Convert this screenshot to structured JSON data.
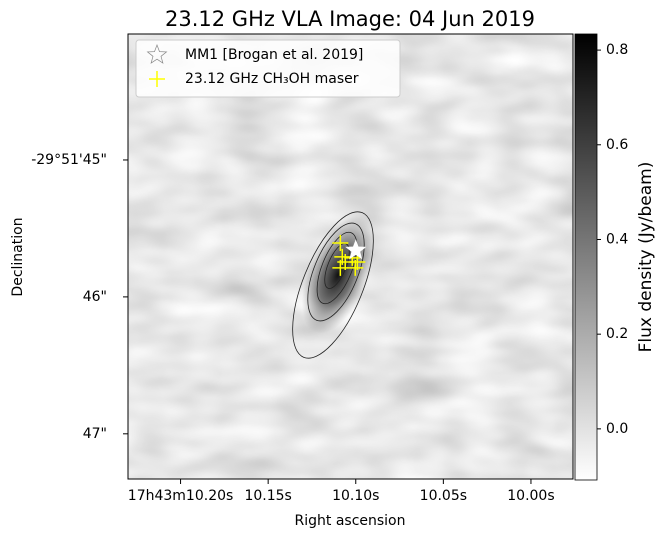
{
  "chart_data": {
    "type": "image",
    "title": "23.12 GHz VLA Image: 04 Jun 2019",
    "xlabel": "Right ascension",
    "ylabel": "Declination",
    "colorbar_label": "Flux density (Jy/beam)",
    "xlim": [
      10.23,
      9.976
    ],
    "xticks": [
      {
        "value": 10.2,
        "label": "17h43m10.20s"
      },
      {
        "value": 10.15,
        "label": "10.15s"
      },
      {
        "value": 10.1,
        "label": "10.10s"
      },
      {
        "value": 10.05,
        "label": "10.05s"
      },
      {
        "value": 10.0,
        "label": "10.00s"
      }
    ],
    "ylim": [
      47.33,
      44.08
    ],
    "yticks": [
      {
        "value": 45,
        "label": "-29°51'45\""
      },
      {
        "value": 46,
        "label": "46\""
      },
      {
        "value": 47,
        "label": "47\""
      }
    ],
    "clim": [
      -0.108,
      0.834
    ],
    "cticks": [
      {
        "value": 0,
        "label": "0.0"
      },
      0.2,
      0.4,
      0.6,
      0.8
    ],
    "legend": "upper left",
    "series": [
      {
        "name": "MM1 [Brogan et al. 2019]",
        "marker": "star",
        "color": "#ffffff",
        "x": [
          10.1
        ],
        "y": [
          45.66
        ]
      },
      {
        "name": "23.12 GHz CH₃OH maser",
        "marker": "plus",
        "color": "#ffff00",
        "x": [
          10.1088,
          10.1077,
          10.106,
          10.102,
          10.0991,
          10.1088,
          10.1003
        ],
        "y": [
          45.606,
          45.708,
          45.745,
          45.715,
          45.745,
          45.788,
          45.788
        ]
      }
    ]
  }
}
